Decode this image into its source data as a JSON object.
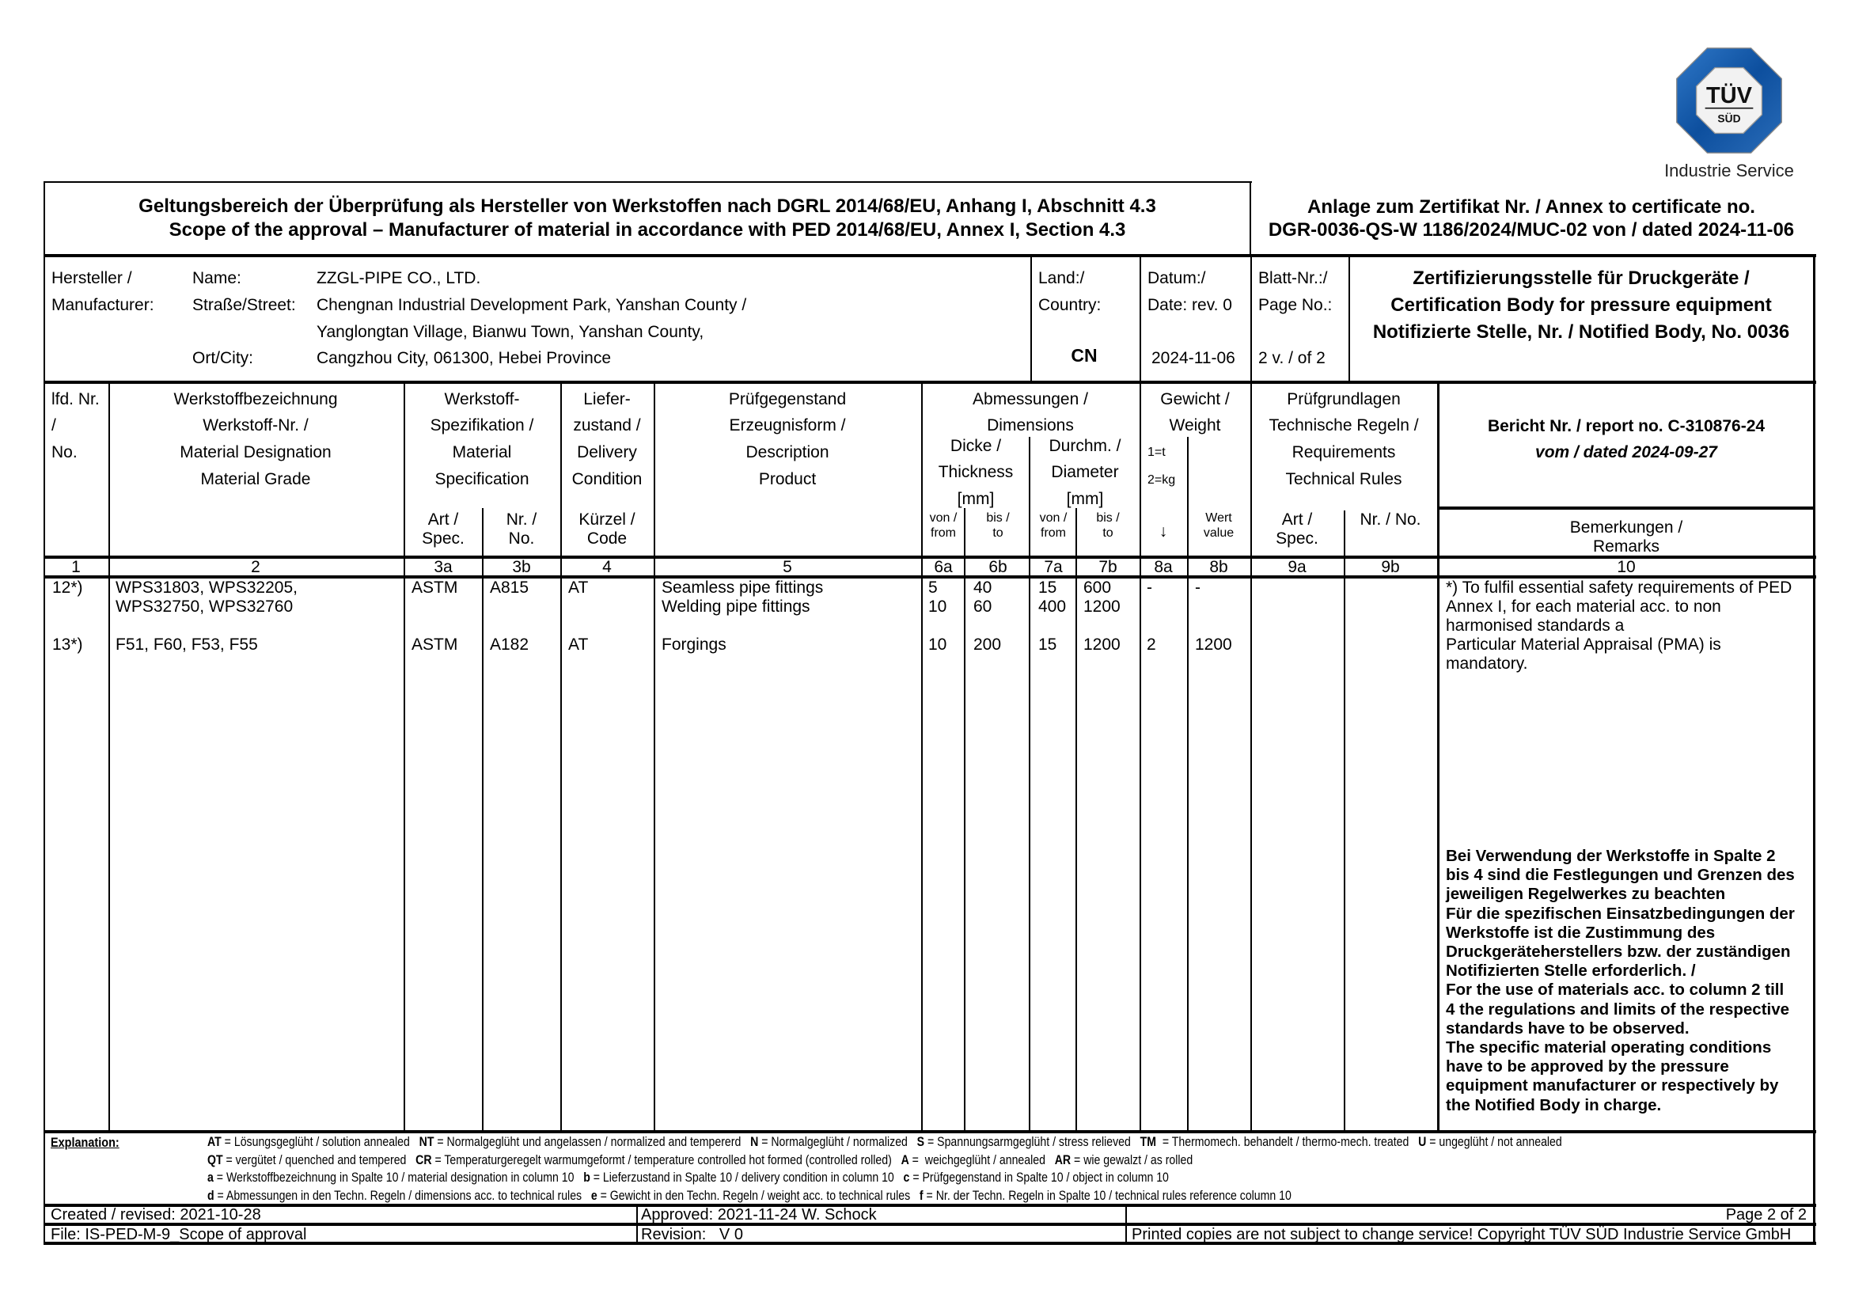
{
  "logo": {
    "brand": "TÜV SÜD",
    "line1": "TÜV",
    "line2": "SÜD",
    "subtitle": "Industrie Service",
    "color": "#1a5aa8"
  },
  "header": {
    "title_de": "Geltungsbereich der Überprüfung als Hersteller von Werkstoffen nach DGRL 2014/68/EU, Anhang I, Abschnitt 4.3",
    "title_en": "Scope of the approval – Manufacturer of material in accordance with PED 2014/68/EU, Annex I, Section 4.3",
    "annex_line1": "Anlage zum Zertifikat Nr. / Annex to certificate no.",
    "annex_line2": "DGR-0036-QS-W 1186/2024/MUC-02 von / dated 2024-11-06"
  },
  "manufacturer": {
    "label1": "Hersteller /",
    "label2": "Manufacturer:",
    "name_label": "Name:",
    "name": "ZZGL-PIPE CO., LTD.",
    "street_label": "Straße/Street:",
    "street1": "Chengnan Industrial Development Park, Yanshan County /",
    "street2": "Yanglongtan Village, Bianwu Town, Yanshan County,",
    "city_label": "Ort/City:",
    "city": "Cangzhou City, 061300, Hebei Province",
    "country_label1": "Land:/",
    "country_label2": "Country:",
    "country": "CN",
    "date_label1": "Datum:/",
    "date_label2": "Date: rev. 0",
    "date": "2024-11-06",
    "page_label1": "Blatt-Nr.:/",
    "page_label2": "Page No.:",
    "page": "2 v. / of 2",
    "cert_body1": "Zertifizierungsstelle für Druckgeräte /",
    "cert_body2": "Certification Body for pressure equipment",
    "cert_body3": "Notifizierte Stelle, Nr. / Notified Body, No. 0036"
  },
  "columns": {
    "c1": [
      "lfd. Nr.",
      "/",
      "No."
    ],
    "c2": [
      "Werkstoffbezeichnung",
      "Werkstoff-Nr. /",
      "Material Designation",
      "Material Grade"
    ],
    "c3": [
      "Werkstoff-",
      "Spezifikation /",
      "Material",
      "Specification"
    ],
    "c3a": [
      "Art /",
      "Spec."
    ],
    "c3b": [
      "Nr. /",
      "No."
    ],
    "c4": [
      "Liefer-",
      "zustand /",
      "Delivery",
      "Condition"
    ],
    "c4sub": [
      "Kürzel /",
      "Code"
    ],
    "c5": [
      "Prüfgegenstand",
      "Erzeugnisform /",
      "Description",
      "Product"
    ],
    "c6_7": [
      "Abmessungen /",
      "Dimensions"
    ],
    "c6": [
      "Dicke /",
      "Thickness",
      "[mm]"
    ],
    "c7": [
      "Durchm. /",
      "Diameter",
      "[mm]"
    ],
    "from": [
      "von /",
      "from"
    ],
    "to": [
      "bis /",
      "to"
    ],
    "c8": [
      "Gewicht /",
      "Weight"
    ],
    "c8a": [
      "1=t",
      "2=kg",
      "↓"
    ],
    "c8b": [
      "Wert",
      "value"
    ],
    "c9": [
      "Prüfgrundlagen",
      "Technische Regeln /",
      "Requirements",
      "Technical Rules"
    ],
    "c9a": [
      "Art /",
      "Spec."
    ],
    "c9b": "Nr. / No.",
    "report1": "Bericht Nr. / report no. C-310876-24",
    "report2": "vom / dated 2024-09-27",
    "c10": [
      "Bemerkungen /",
      "Remarks"
    ],
    "numbers": [
      "1",
      "2",
      "3a",
      "3b",
      "4",
      "5",
      "6a",
      "6b",
      "7a",
      "7b",
      "8a",
      "8b",
      "9a",
      "9b",
      "10"
    ]
  },
  "rows": [
    {
      "no": "12*)",
      "material": [
        "WPS31803, WPS32205,",
        "WPS32750, WPS32760"
      ],
      "spec": "ASTM",
      "spec_no": "A815",
      "code": "AT",
      "product": [
        "Seamless pipe fittings",
        "Welding pipe fittings"
      ],
      "t_from": [
        "5",
        "10"
      ],
      "t_to": [
        "40",
        "60"
      ],
      "d_from": [
        "15",
        "400"
      ],
      "d_to": [
        "600",
        "1200"
      ],
      "w_unit": "-",
      "w_value": "-"
    },
    {
      "no": "13*)",
      "material": [
        "F51, F60, F53, F55"
      ],
      "spec": "ASTM",
      "spec_no": "A182",
      "code": "AT",
      "product": [
        "Forgings"
      ],
      "t_from": [
        "10"
      ],
      "t_to": [
        "200"
      ],
      "d_from": [
        "15"
      ],
      "d_to": [
        "1200"
      ],
      "w_unit": "2",
      "w_value": "1200"
    }
  ],
  "remarks": {
    "note": [
      "*) To fulfil essential safety requirements of PED",
      "Annex I, for each material acc. to non",
      "harmonised standards a",
      "Particular Material Appraisal (PMA) is",
      "mandatory."
    ],
    "bold": [
      "Bei Verwendung der Werkstoffe in Spalte 2",
      "bis 4 sind die Festlegungen und Grenzen des",
      "jeweiligen Regelwerkes zu beachten",
      "Für die spezifischen Einsatzbedingungen der",
      "Werkstoffe ist die Zustimmung des",
      "Druckgeräteherstellers bzw. der zuständigen",
      "Notifizierten Stelle erforderlich. /",
      "For the use of materials acc. to column 2 till",
      "4 the regulations and limits of the respective",
      "standards have to be observed.",
      "The specific material operating conditions",
      "have to be approved by the pressure",
      "equipment manufacturer or respectively by",
      "the Notified Body in charge."
    ]
  },
  "explanation": {
    "label": "Explanation:",
    "lines": [
      [
        {
          "code": "AT",
          "text": " = Lösungsgeglüht / solution annealed   "
        },
        {
          "code": "NT",
          "text": " = Normalgeglüht und angelassen / normalized and tempererd   "
        },
        {
          "code": "N",
          "text": " = Normalgeglüht / normalized   "
        },
        {
          "code": "S",
          "text": " = Spannungsarmgeglüht / stress relieved   "
        },
        {
          "code": "TM",
          "text": "  = Thermomech. behandelt / thermo-mech. treated   "
        },
        {
          "code": "U",
          "text": " = ungeglüht / not annealed"
        }
      ],
      [
        {
          "code": "QT",
          "text": " = vergütet / quenched and tempered   "
        },
        {
          "code": "CR",
          "text": " = Temperaturgeregelt warmumgeformt / temperature controlled hot formed (controlled rolled)   "
        },
        {
          "code": "A",
          "text": " =  weichgeglüht / annealed   "
        },
        {
          "code": "AR",
          "text": " = wie gewalzt / as rolled"
        }
      ],
      [
        {
          "code": "a",
          "text": " = Werkstoffbezeichnung in Spalte 10 / material designation in column 10   "
        },
        {
          "code": "b",
          "text": " = Lieferzustand in Spalte 10 / delivery condition in column 10   "
        },
        {
          "code": "c",
          "text": " = Prüfgegenstand in Spalte 10 / object in column 10"
        }
      ],
      [
        {
          "code": "d",
          "text": " = Abmessungen in den Techn. Regeln / dimensions acc. to technical rules   "
        },
        {
          "code": "e",
          "text": " = Gewicht in den Techn. Regeln / weight acc. to technical rules   "
        },
        {
          "code": "f",
          "text": " = Nr. der Techn. Regeln in Spalte 10 / technical rules reference column 10"
        }
      ]
    ]
  },
  "footer": {
    "created": "Created / revised: 2021-10-28",
    "approved": "Approved: 2021-11-24 W. Schock",
    "page": "Page 2 of 2",
    "file": "File: IS-PED-M-9_Scope of approval",
    "revision": "Revision:   V 0",
    "copyright": "Printed copies are not subject to change service! Copyright TÜV SÜD Industrie Service GmbH"
  }
}
